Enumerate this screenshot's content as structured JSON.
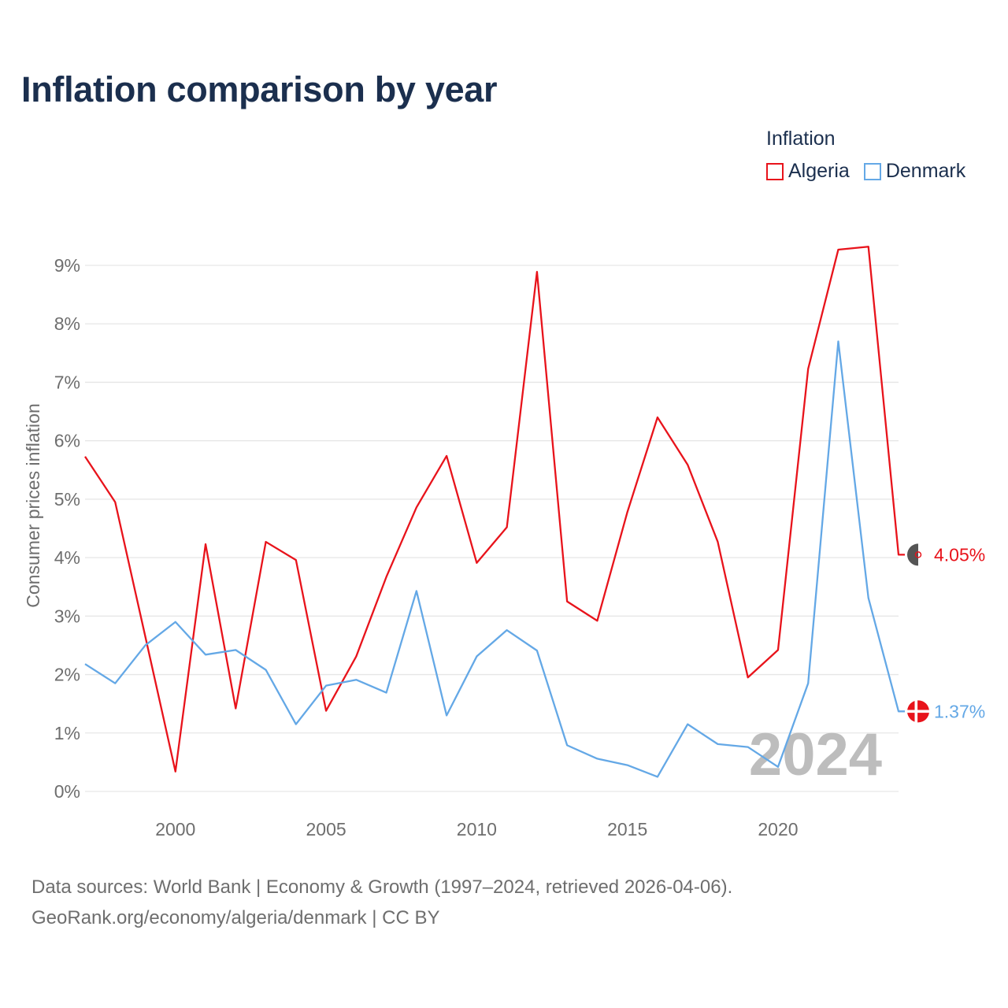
{
  "header": {
    "title": "Inflation comparison by year"
  },
  "legend": {
    "title": "Inflation",
    "items": [
      {
        "label": "Algeria",
        "color": "#e8131b"
      },
      {
        "label": "Denmark",
        "color": "#64a8e6"
      }
    ]
  },
  "chart_data": {
    "type": "line",
    "title": "Inflation comparison by year",
    "ylabel": "Consumer prices inflation",
    "xlabel": "",
    "xlim": [
      1997,
      2024
    ],
    "ylim": [
      0,
      9.6
    ],
    "y_ticks": [
      0,
      1,
      2,
      3,
      4,
      5,
      6,
      7,
      8,
      9
    ],
    "y_tick_labels": [
      "0%",
      "1%",
      "2%",
      "3%",
      "4%",
      "5%",
      "6%",
      "7%",
      "8%",
      "9%"
    ],
    "x_ticks": [
      2000,
      2005,
      2010,
      2015,
      2020
    ],
    "x_tick_labels": [
      "2000",
      "2005",
      "2010",
      "2015",
      "2020"
    ],
    "grid": true,
    "x": [
      1997,
      1998,
      1999,
      2000,
      2001,
      2002,
      2003,
      2004,
      2005,
      2006,
      2007,
      2008,
      2009,
      2010,
      2011,
      2012,
      2013,
      2014,
      2015,
      2016,
      2017,
      2018,
      2019,
      2020,
      2021,
      2022,
      2023,
      2024
    ],
    "series": [
      {
        "name": "Algeria",
        "color": "#e8131b",
        "values": [
          5.73,
          4.95,
          2.65,
          0.34,
          4.23,
          1.42,
          4.27,
          3.96,
          1.38,
          2.31,
          3.67,
          4.86,
          5.74,
          3.91,
          4.52,
          8.89,
          3.25,
          2.92,
          4.78,
          6.4,
          5.59,
          4.27,
          1.95,
          2.42,
          7.23,
          9.27,
          9.32,
          4.05
        ],
        "end_label": "4.05%"
      },
      {
        "name": "Denmark",
        "color": "#64a8e6",
        "values": [
          2.18,
          1.85,
          2.5,
          2.9,
          2.34,
          2.42,
          2.08,
          1.15,
          1.81,
          1.91,
          1.69,
          3.43,
          1.3,
          2.31,
          2.76,
          2.41,
          0.79,
          0.56,
          0.45,
          0.25,
          1.15,
          0.81,
          0.76,
          0.42,
          1.85,
          7.7,
          3.31,
          1.37
        ],
        "end_label": "1.37%"
      }
    ],
    "year_watermark": "2024"
  },
  "footer": {
    "sources": "Data sources: World Bank | Economy & Growth (1997–2024, retrieved 2026-04-06).",
    "credit": "GeoRank.org/economy/algeria/denmark | CC BY"
  }
}
